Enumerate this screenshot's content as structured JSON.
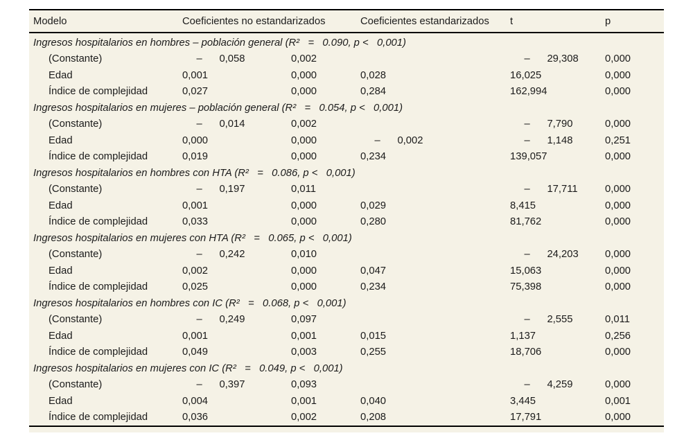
{
  "colors": {
    "page_bg": "#ffffff",
    "panel_bg": "#f5f2e6",
    "text": "#1b1b1b",
    "rule": "#000000"
  },
  "table": {
    "headers": {
      "modelo": "Modelo",
      "coef_no_std": "Coeficientes no estandarizados",
      "coef_std": "Coeficientes estandarizados",
      "t": "t",
      "p": "p"
    },
    "sections": [
      {
        "title": "Ingresos hospitalarios en hombres – población general (R²   =   0.090, p <   0,001)",
        "rows": [
          {
            "label": "(Constante)",
            "b": "     –      0,058",
            "se": "0,002",
            "beta": "",
            "t": "     –      29,308",
            "p": "0,000"
          },
          {
            "label": "Edad",
            "b": "0,001",
            "se": "0,000",
            "beta": "0,028",
            "t": "16,025",
            "p": "0,000"
          },
          {
            "label": "Índice de complejidad",
            "b": "0,027",
            "se": "0,000",
            "beta": "0,284",
            "t": "162,994",
            "p": "0,000"
          }
        ]
      },
      {
        "title": "Ingresos hospitalarios en mujeres – población general (R²   =   0.054, p <   0,001)",
        "rows": [
          {
            "label": "(Constante)",
            "b": "     –      0,014",
            "se": "0,002",
            "beta": "",
            "t": "     –      7,790",
            "p": "0,000"
          },
          {
            "label": "Edad",
            "b": "0,000",
            "se": "0,000",
            "beta": "     –      0,002",
            "t": "     –      1,148",
            "p": "0,251"
          },
          {
            "label": "Índice de complejidad",
            "b": "0,019",
            "se": "0,000",
            "beta": "0,234",
            "t": "139,057",
            "p": "0,000"
          }
        ]
      },
      {
        "title": "Ingresos hospitalarios en hombres con HTA (R²   =   0.086, p <   0,001)",
        "rows": [
          {
            "label": "(Constante)",
            "b": "     –      0,197",
            "se": "0,011",
            "beta": "",
            "t": "     –      17,711",
            "p": "0,000"
          },
          {
            "label": "Edad",
            "b": "0,001",
            "se": "0,000",
            "beta": "0,029",
            "t": "8,415",
            "p": "0,000"
          },
          {
            "label": "Índice de complejidad",
            "b": "0,033",
            "se": "0,000",
            "beta": "0,280",
            "t": "81,762",
            "p": "0,000"
          }
        ]
      },
      {
        "title": "Ingresos hospitalarios en mujeres con HTA (R²   =   0.065, p <   0,001)",
        "rows": [
          {
            "label": "(Constante)",
            "b": "     –      0,242",
            "se": "0,010",
            "beta": "",
            "t": "     –      24,203",
            "p": "0,000"
          },
          {
            "label": "Edad",
            "b": "0,002",
            "se": "0,000",
            "beta": "0,047",
            "t": "15,063",
            "p": "0,000"
          },
          {
            "label": "Índice de complejidad",
            "b": "0,025",
            "se": "0,000",
            "beta": "0,234",
            "t": "75,398",
            "p": "0,000"
          }
        ]
      },
      {
        "title": "Ingresos hospitalarios en hombres con IC (R²   =   0.068, p <   0,001)",
        "rows": [
          {
            "label": "(Constante)",
            "b": "     –      0,249",
            "se": "0,097",
            "beta": "",
            "t": "     –      2,555",
            "p": "0,011"
          },
          {
            "label": "Edad",
            "b": "0,001",
            "se": "0,001",
            "beta": "0,015",
            "t": "1,137",
            "p": "0,256"
          },
          {
            "label": "Índice de complejidad",
            "b": "0,049",
            "se": "0,003",
            "beta": "0,255",
            "t": "18,706",
            "p": "0,000"
          }
        ]
      },
      {
        "title": "Ingresos hospitalarios en mujeres con IC (R²   =   0.049, p <   0,001)",
        "rows": [
          {
            "label": "(Constante)",
            "b": "     –      0,397",
            "se": "0,093",
            "beta": "",
            "t": "     –      4,259",
            "p": "0,000"
          },
          {
            "label": "Edad",
            "b": "0,004",
            "se": "0,001",
            "beta": "0,040",
            "t": "3,445",
            "p": "0,001"
          },
          {
            "label": "Índice de complejidad",
            "b": "0,036",
            "se": "0,002",
            "beta": "0,208",
            "t": "17,791",
            "p": "0,000"
          }
        ]
      }
    ]
  }
}
